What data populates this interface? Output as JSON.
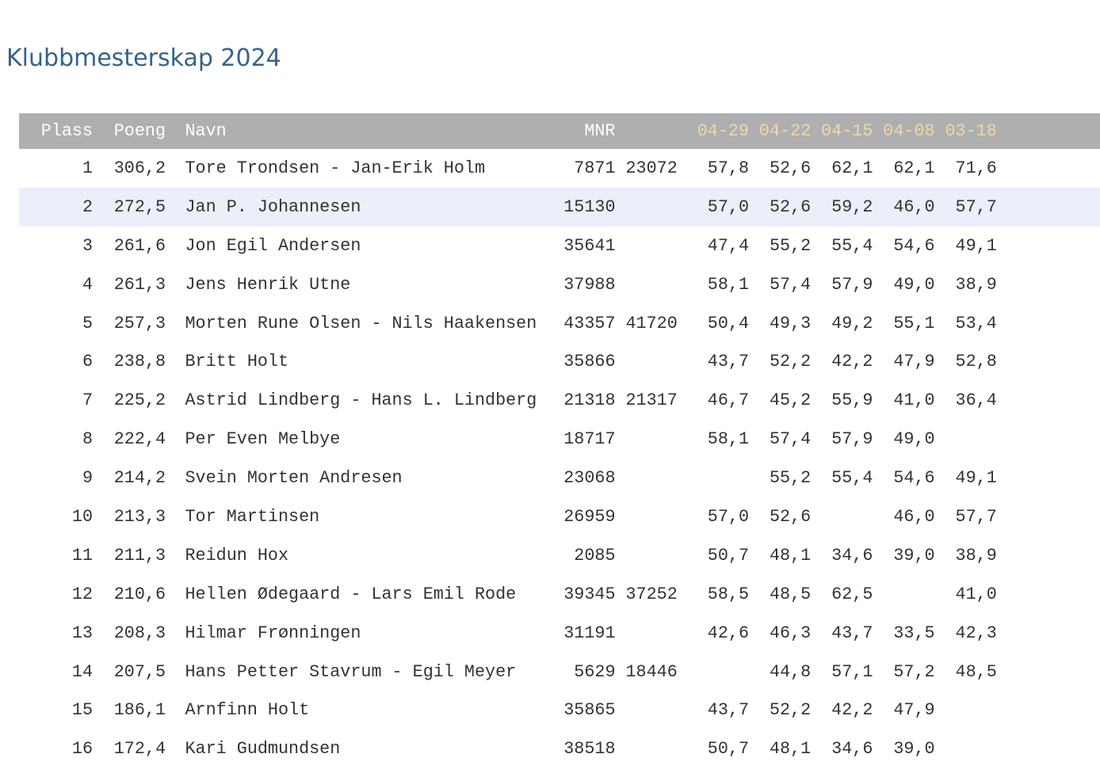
{
  "page": {
    "title": "Klubbmesterskap 2024"
  },
  "colors": {
    "title_text": "#36638A",
    "header_bg": "#AFAFB1",
    "header_text": "#FFFFFF",
    "header_date_text": "#F0D9A0",
    "highlight_row_bg": "#ECEFFA",
    "body_text": "#333333"
  },
  "table": {
    "headers": {
      "plass": "Plass",
      "poeng": "Poeng",
      "navn": "Navn",
      "mnr": "MNR",
      "dates": [
        "04-29",
        "04-22",
        "04-15",
        "04-08",
        "03-18"
      ]
    },
    "rows": [
      {
        "plass": "1",
        "poeng": "306,2",
        "navn": "Tore Trondsen - Jan-Erik Holm",
        "mnr1": "7871",
        "mnr2": "23072",
        "scores": [
          "57,8",
          "52,6",
          "62,1",
          "62,1",
          "71,6"
        ],
        "highlighted": false
      },
      {
        "plass": "2",
        "poeng": "272,5",
        "navn": "Jan P. Johannesen",
        "mnr1": "15130",
        "mnr2": "",
        "scores": [
          "57,0",
          "52,6",
          "59,2",
          "46,0",
          "57,7"
        ],
        "highlighted": true
      },
      {
        "plass": "3",
        "poeng": "261,6",
        "navn": "Jon Egil Andersen",
        "mnr1": "35641",
        "mnr2": "",
        "scores": [
          "47,4",
          "55,2",
          "55,4",
          "54,6",
          "49,1"
        ],
        "highlighted": false
      },
      {
        "plass": "4",
        "poeng": "261,3",
        "navn": "Jens Henrik Utne",
        "mnr1": "37988",
        "mnr2": "",
        "scores": [
          "58,1",
          "57,4",
          "57,9",
          "49,0",
          "38,9"
        ],
        "highlighted": false
      },
      {
        "plass": "5",
        "poeng": "257,3",
        "navn": "Morten Rune Olsen - Nils Haakensen",
        "mnr1": "43357",
        "mnr2": "41720",
        "scores": [
          "50,4",
          "49,3",
          "49,2",
          "55,1",
          "53,4"
        ],
        "highlighted": false
      },
      {
        "plass": "6",
        "poeng": "238,8",
        "navn": "Britt Holt",
        "mnr1": "35866",
        "mnr2": "",
        "scores": [
          "43,7",
          "52,2",
          "42,2",
          "47,9",
          "52,8"
        ],
        "highlighted": false
      },
      {
        "plass": "7",
        "poeng": "225,2",
        "navn": "Astrid Lindberg - Hans L. Lindberg",
        "mnr1": "21318",
        "mnr2": "21317",
        "scores": [
          "46,7",
          "45,2",
          "55,9",
          "41,0",
          "36,4"
        ],
        "highlighted": false
      },
      {
        "plass": "8",
        "poeng": "222,4",
        "navn": "Per Even Melbye",
        "mnr1": "18717",
        "mnr2": "",
        "scores": [
          "58,1",
          "57,4",
          "57,9",
          "49,0",
          ""
        ],
        "highlighted": false
      },
      {
        "plass": "9",
        "poeng": "214,2",
        "navn": "Svein Morten Andresen",
        "mnr1": "23068",
        "mnr2": "",
        "scores": [
          "",
          "55,2",
          "55,4",
          "54,6",
          "49,1"
        ],
        "highlighted": false
      },
      {
        "plass": "10",
        "poeng": "213,3",
        "navn": "Tor Martinsen",
        "mnr1": "26959",
        "mnr2": "",
        "scores": [
          "57,0",
          "52,6",
          "",
          "46,0",
          "57,7"
        ],
        "highlighted": false
      },
      {
        "plass": "11",
        "poeng": "211,3",
        "navn": "Reidun Hox",
        "mnr1": "2085",
        "mnr2": "",
        "scores": [
          "50,7",
          "48,1",
          "34,6",
          "39,0",
          "38,9"
        ],
        "highlighted": false
      },
      {
        "plass": "12",
        "poeng": "210,6",
        "navn": "Hellen Ødegaard - Lars Emil Rode",
        "mnr1": "39345",
        "mnr2": "37252",
        "scores": [
          "58,5",
          "48,5",
          "62,5",
          "",
          "41,0"
        ],
        "highlighted": false
      },
      {
        "plass": "13",
        "poeng": "208,3",
        "navn": "Hilmar Frønningen",
        "mnr1": "31191",
        "mnr2": "",
        "scores": [
          "42,6",
          "46,3",
          "43,7",
          "33,5",
          "42,3"
        ],
        "highlighted": false
      },
      {
        "plass": "14",
        "poeng": "207,5",
        "navn": "Hans Petter Stavrum - Egil Meyer",
        "mnr1": "5629",
        "mnr2": "18446",
        "scores": [
          "",
          "44,8",
          "57,1",
          "57,2",
          "48,5"
        ],
        "highlighted": false
      },
      {
        "plass": "15",
        "poeng": "186,1",
        "navn": "Arnfinn Holt",
        "mnr1": "35865",
        "mnr2": "",
        "scores": [
          "43,7",
          "52,2",
          "42,2",
          "47,9",
          ""
        ],
        "highlighted": false
      },
      {
        "plass": "16",
        "poeng": "172,4",
        "navn": "Kari Gudmundsen",
        "mnr1": "38518",
        "mnr2": "",
        "scores": [
          "50,7",
          "48,1",
          "34,6",
          "39,0",
          ""
        ],
        "highlighted": false
      }
    ]
  }
}
